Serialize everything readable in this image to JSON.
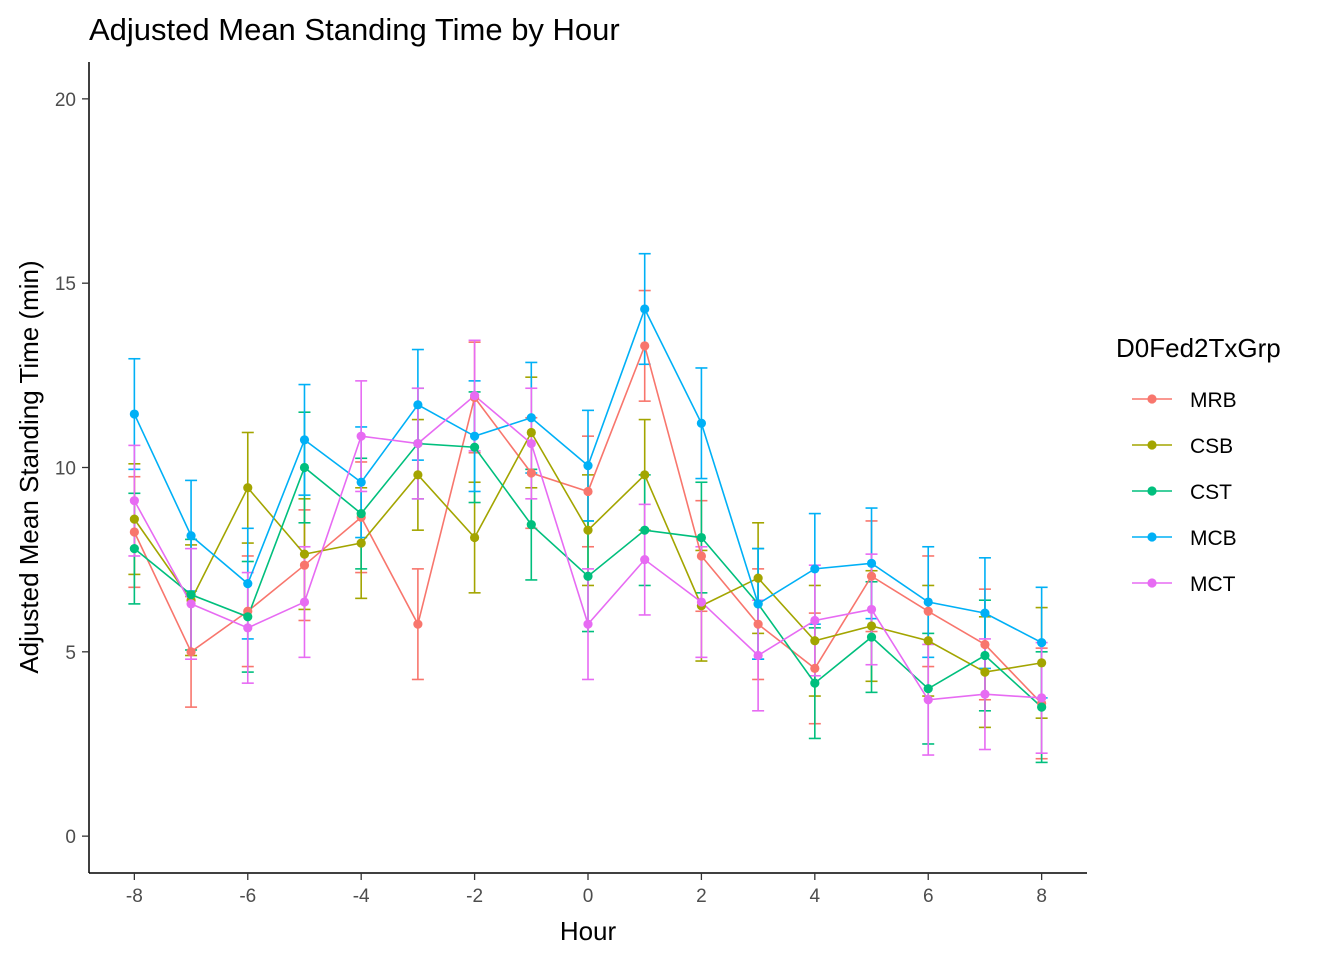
{
  "chart_data": {
    "type": "line",
    "title": "Adjusted Mean Standing Time by Hour",
    "xlabel": "Hour",
    "ylabel": "Adjusted Mean Standing Time (min)",
    "xlim": [
      -8.8,
      8.8
    ],
    "ylim": [
      -1,
      21
    ],
    "x_ticks": [
      -8,
      -6,
      -4,
      -2,
      0,
      2,
      4,
      6,
      8
    ],
    "x_tick_labels": [
      "-8",
      "-6",
      "-4",
      "-2",
      "0",
      "2",
      "4",
      "6",
      "8"
    ],
    "y_ticks": [
      0,
      5,
      10,
      15,
      20
    ],
    "y_tick_labels": [
      "0",
      "5",
      "10",
      "15",
      "20"
    ],
    "grid": false,
    "legend": {
      "title": "D0Fed2TxGrp",
      "position": "right"
    },
    "x": [
      -8,
      -7,
      -6,
      -5,
      -4,
      -3,
      -2,
      -1,
      0,
      1,
      2,
      3,
      4,
      5,
      6,
      7,
      8
    ],
    "error_bar_halfwidth": 1.5,
    "series": [
      {
        "name": "MRB",
        "color": "#F8766D",
        "values": [
          8.25,
          5.0,
          6.1,
          7.35,
          8.65,
          5.75,
          11.9,
          9.85,
          9.35,
          13.3,
          7.6,
          5.75,
          4.55,
          7.05,
          6.1,
          5.2,
          3.6
        ]
      },
      {
        "name": "CSB",
        "color": "#A3A500",
        "values": [
          8.6,
          6.4,
          9.45,
          7.65,
          7.95,
          9.8,
          8.1,
          10.95,
          8.3,
          9.8,
          6.25,
          7.0,
          5.3,
          5.7,
          5.3,
          4.45,
          4.7
        ]
      },
      {
        "name": "CST",
        "color": "#00BF7D",
        "values": [
          7.8,
          6.55,
          5.95,
          10.0,
          8.75,
          10.65,
          10.55,
          8.45,
          7.05,
          8.3,
          8.1,
          6.3,
          4.15,
          5.4,
          4.0,
          4.9,
          3.5
        ]
      },
      {
        "name": "MCB",
        "color": "#00B0F6",
        "values": [
          11.45,
          8.15,
          6.85,
          10.75,
          9.6,
          11.7,
          10.85,
          11.35,
          10.05,
          14.3,
          11.2,
          6.3,
          7.25,
          7.4,
          6.35,
          6.05,
          5.25
        ]
      },
      {
        "name": "MCT",
        "color": "#E76BF3",
        "values": [
          9.1,
          6.3,
          5.65,
          6.35,
          10.85,
          10.65,
          11.95,
          10.65,
          5.75,
          7.5,
          6.35,
          4.9,
          5.85,
          6.15,
          3.7,
          3.85,
          3.75
        ]
      }
    ]
  }
}
